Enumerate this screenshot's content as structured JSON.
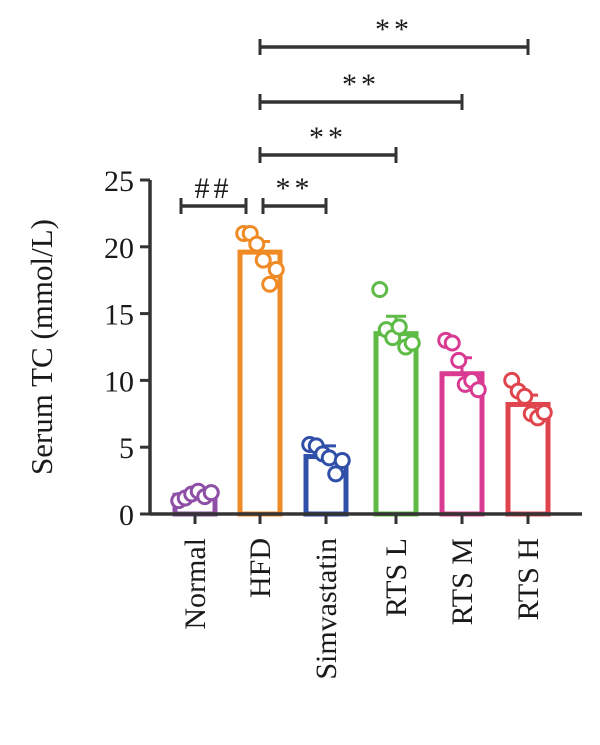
{
  "chart_data": {
    "type": "bar",
    "title": "",
    "xlabel": "",
    "ylabel": "Serum TC (mmol/L)",
    "ylim": [
      0,
      25
    ],
    "yticks": [
      0,
      5,
      10,
      15,
      20,
      25
    ],
    "grid": false,
    "legend": "none",
    "categories": [
      "Normal",
      "HFD",
      "Simvastatin",
      "RTS L",
      "RTS M",
      "RTS H"
    ],
    "colors": [
      "#8e4fa6",
      "#f08a24",
      "#2f4fa8",
      "#5dbb46",
      "#d93b93",
      "#e0454e"
    ],
    "values": [
      1.4,
      19.6,
      4.3,
      13.5,
      10.5,
      8.2
    ],
    "errors": [
      0.3,
      0.8,
      0.8,
      1.3,
      1.2,
      0.7
    ],
    "points": [
      [
        1.0,
        1.2,
        1.5,
        1.7,
        1.3,
        1.6
      ],
      [
        21.0,
        21.0,
        20.2,
        19.0,
        17.2,
        18.3
      ],
      [
        5.2,
        5.1,
        4.5,
        4.2,
        3.0,
        4.0
      ],
      [
        16.8,
        13.8,
        13.2,
        14.0,
        12.5,
        12.8
      ],
      [
        13.0,
        12.8,
        11.5,
        9.7,
        10.0,
        9.3
      ],
      [
        10.0,
        9.2,
        8.8,
        7.5,
        7.2,
        7.6
      ]
    ],
    "comparisons": [
      {
        "from": "Normal",
        "to": "HFD",
        "label": "##"
      },
      {
        "from": "HFD",
        "to": "Simvastatin",
        "label": "**"
      },
      {
        "from": "HFD",
        "to": "RTS L",
        "label": "**"
      },
      {
        "from": "HFD",
        "to": "RTS M",
        "label": "**"
      },
      {
        "from": "HFD",
        "to": "RTS H",
        "label": "**"
      }
    ]
  }
}
